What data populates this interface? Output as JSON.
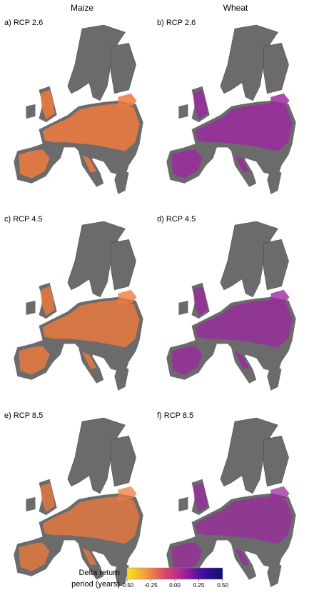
{
  "columns": [
    "Maize",
    "Wheat"
  ],
  "panels": [
    {
      "label": "a) RCP 2.6"
    },
    {
      "label": "b) RCP 2.6"
    },
    {
      "label": "c) RCP 4.5"
    },
    {
      "label": "d) RCP 4.5"
    },
    {
      "label": "e) RCP 8.5"
    },
    {
      "label": "f) RCP 8.5"
    }
  ],
  "colorbar": {
    "label_lines": [
      "Delta return",
      "period (years)"
    ],
    "clim": [
      -0.5,
      0.5
    ],
    "colors": [
      "#f7e51e",
      "#f39a3a",
      "#d8456d",
      "#a51f9a",
      "#3a0f9c",
      "#10106e"
    ],
    "ticks": [
      {
        "value": -0.5,
        "label": "-0.50"
      },
      -0.25,
      {
        "value": 0,
        "label": "0.00"
      },
      0.25,
      {
        "value": 0.5,
        "label": "0.50"
      }
    ]
  }
}
